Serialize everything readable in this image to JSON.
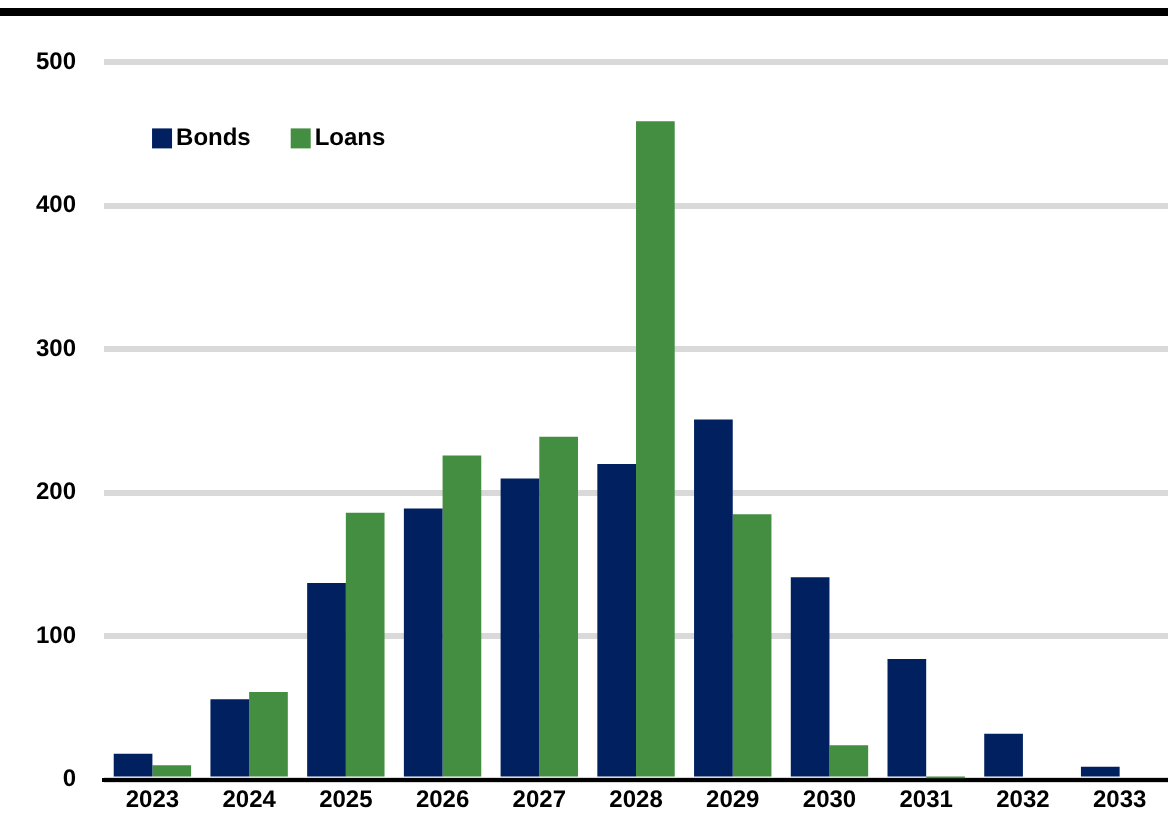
{
  "chart_data": {
    "type": "bar",
    "categories": [
      "2023",
      "2024",
      "2025",
      "2026",
      "2027",
      "2028",
      "2029",
      "2030",
      "2031",
      "2032",
      "2033"
    ],
    "series": [
      {
        "name": "Bonds",
        "color": "#002060",
        "values": [
          18,
          56,
          137,
          189,
          210,
          220,
          251,
          141,
          84,
          32,
          9
        ]
      },
      {
        "name": "Loans",
        "color": "#448e41",
        "values": [
          10,
          61,
          186,
          226,
          239,
          459,
          185,
          24,
          1,
          0,
          0
        ]
      }
    ],
    "ylim": [
      0,
      500
    ],
    "yticks": [
      0,
      100,
      200,
      300,
      400,
      500
    ],
    "grid": "y",
    "legend": "top left"
  }
}
